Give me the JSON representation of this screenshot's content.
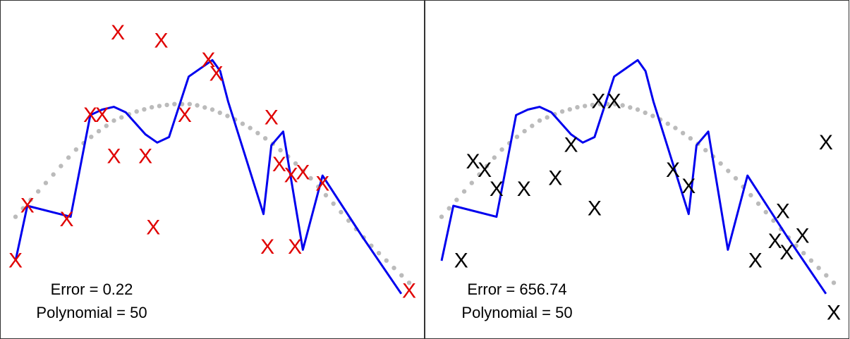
{
  "chart_data": [
    {
      "type": "scatter",
      "title": "",
      "xlabel": "",
      "ylabel": "",
      "xlim": [
        0,
        1
      ],
      "ylim": [
        0,
        1
      ],
      "grid": false,
      "legend": "none",
      "marker_glyph": "X",
      "marker_color": "#e00000",
      "fit_color": "#0000ee",
      "true_curve_color": "#bbbbbb",
      "annotations": {
        "error": "Error =  0.22",
        "polynomial": "Polynomial = 50"
      },
      "points": {
        "x": [
          0.0,
          0.03,
          0.13,
          0.19,
          0.22,
          0.25,
          0.26,
          0.33,
          0.35,
          0.37,
          0.43,
          0.49,
          0.51,
          0.64,
          0.65,
          0.67,
          0.7,
          0.71,
          0.73,
          0.78,
          1.0
        ],
        "y": [
          0.2,
          0.4,
          0.35,
          0.73,
          0.73,
          0.58,
          1.03,
          0.58,
          0.32,
          1.0,
          0.73,
          0.93,
          0.88,
          0.25,
          0.72,
          0.55,
          0.51,
          0.25,
          0.52,
          0.48,
          0.09
        ]
      },
      "fit": {
        "x": [
          0.0,
          0.03,
          0.14,
          0.19,
          0.22,
          0.25,
          0.28,
          0.33,
          0.36,
          0.39,
          0.44,
          0.5,
          0.52,
          0.54,
          0.63,
          0.65,
          0.68,
          0.73,
          0.78,
          0.88,
          0.98
        ],
        "y": [
          0.2,
          0.4,
          0.36,
          0.73,
          0.75,
          0.76,
          0.74,
          0.66,
          0.63,
          0.65,
          0.87,
          0.93,
          0.89,
          0.78,
          0.37,
          0.62,
          0.67,
          0.24,
          0.51,
          0.29,
          0.08
        ]
      },
      "true_curve": {
        "x": [
          0.0,
          0.05,
          0.1,
          0.15,
          0.2,
          0.25,
          0.3,
          0.35,
          0.4,
          0.45,
          0.5,
          0.55,
          0.6,
          0.65,
          0.7,
          0.75,
          0.8,
          0.85,
          0.9,
          0.95,
          1.0
        ],
        "y": [
          0.36,
          0.44,
          0.52,
          0.6,
          0.66,
          0.71,
          0.74,
          0.76,
          0.77,
          0.77,
          0.75,
          0.72,
          0.68,
          0.63,
          0.57,
          0.5,
          0.42,
          0.34,
          0.26,
          0.19,
          0.12
        ]
      }
    },
    {
      "type": "scatter",
      "title": "",
      "xlabel": "",
      "ylabel": "",
      "xlim": [
        0,
        1
      ],
      "ylim": [
        0,
        1
      ],
      "grid": false,
      "legend": "none",
      "marker_glyph": "X",
      "marker_color": "#000000",
      "fit_color": "#0000ee",
      "true_curve_color": "#bbbbbb",
      "annotations": {
        "error": "Error =  656.74",
        "polynomial": "Polynomial = 50"
      },
      "points": {
        "x": [
          0.05,
          0.08,
          0.11,
          0.14,
          0.21,
          0.29,
          0.33,
          0.39,
          0.4,
          0.44,
          0.59,
          0.63,
          0.8,
          0.85,
          0.87,
          0.88,
          0.92,
          0.98,
          1.0
        ],
        "y": [
          0.2,
          0.56,
          0.53,
          0.46,
          0.46,
          0.5,
          0.62,
          0.39,
          0.78,
          0.78,
          0.53,
          0.47,
          0.2,
          0.27,
          0.38,
          0.23,
          0.29,
          0.63,
          0.01
        ]
      },
      "fit": {
        "x": [
          0.0,
          0.03,
          0.14,
          0.19,
          0.22,
          0.25,
          0.28,
          0.33,
          0.36,
          0.39,
          0.44,
          0.5,
          0.52,
          0.54,
          0.63,
          0.65,
          0.68,
          0.73,
          0.78,
          0.88,
          0.98
        ],
        "y": [
          0.2,
          0.4,
          0.36,
          0.73,
          0.75,
          0.76,
          0.74,
          0.66,
          0.63,
          0.65,
          0.87,
          0.93,
          0.89,
          0.78,
          0.37,
          0.62,
          0.67,
          0.24,
          0.51,
          0.29,
          0.08
        ]
      },
      "true_curve": {
        "x": [
          0.0,
          0.05,
          0.1,
          0.15,
          0.2,
          0.25,
          0.3,
          0.35,
          0.4,
          0.45,
          0.5,
          0.55,
          0.6,
          0.65,
          0.7,
          0.75,
          0.8,
          0.85,
          0.9,
          0.95,
          1.0
        ],
        "y": [
          0.36,
          0.44,
          0.52,
          0.6,
          0.66,
          0.71,
          0.74,
          0.76,
          0.77,
          0.77,
          0.75,
          0.72,
          0.68,
          0.63,
          0.57,
          0.5,
          0.42,
          0.34,
          0.26,
          0.19,
          0.12
        ]
      }
    }
  ]
}
